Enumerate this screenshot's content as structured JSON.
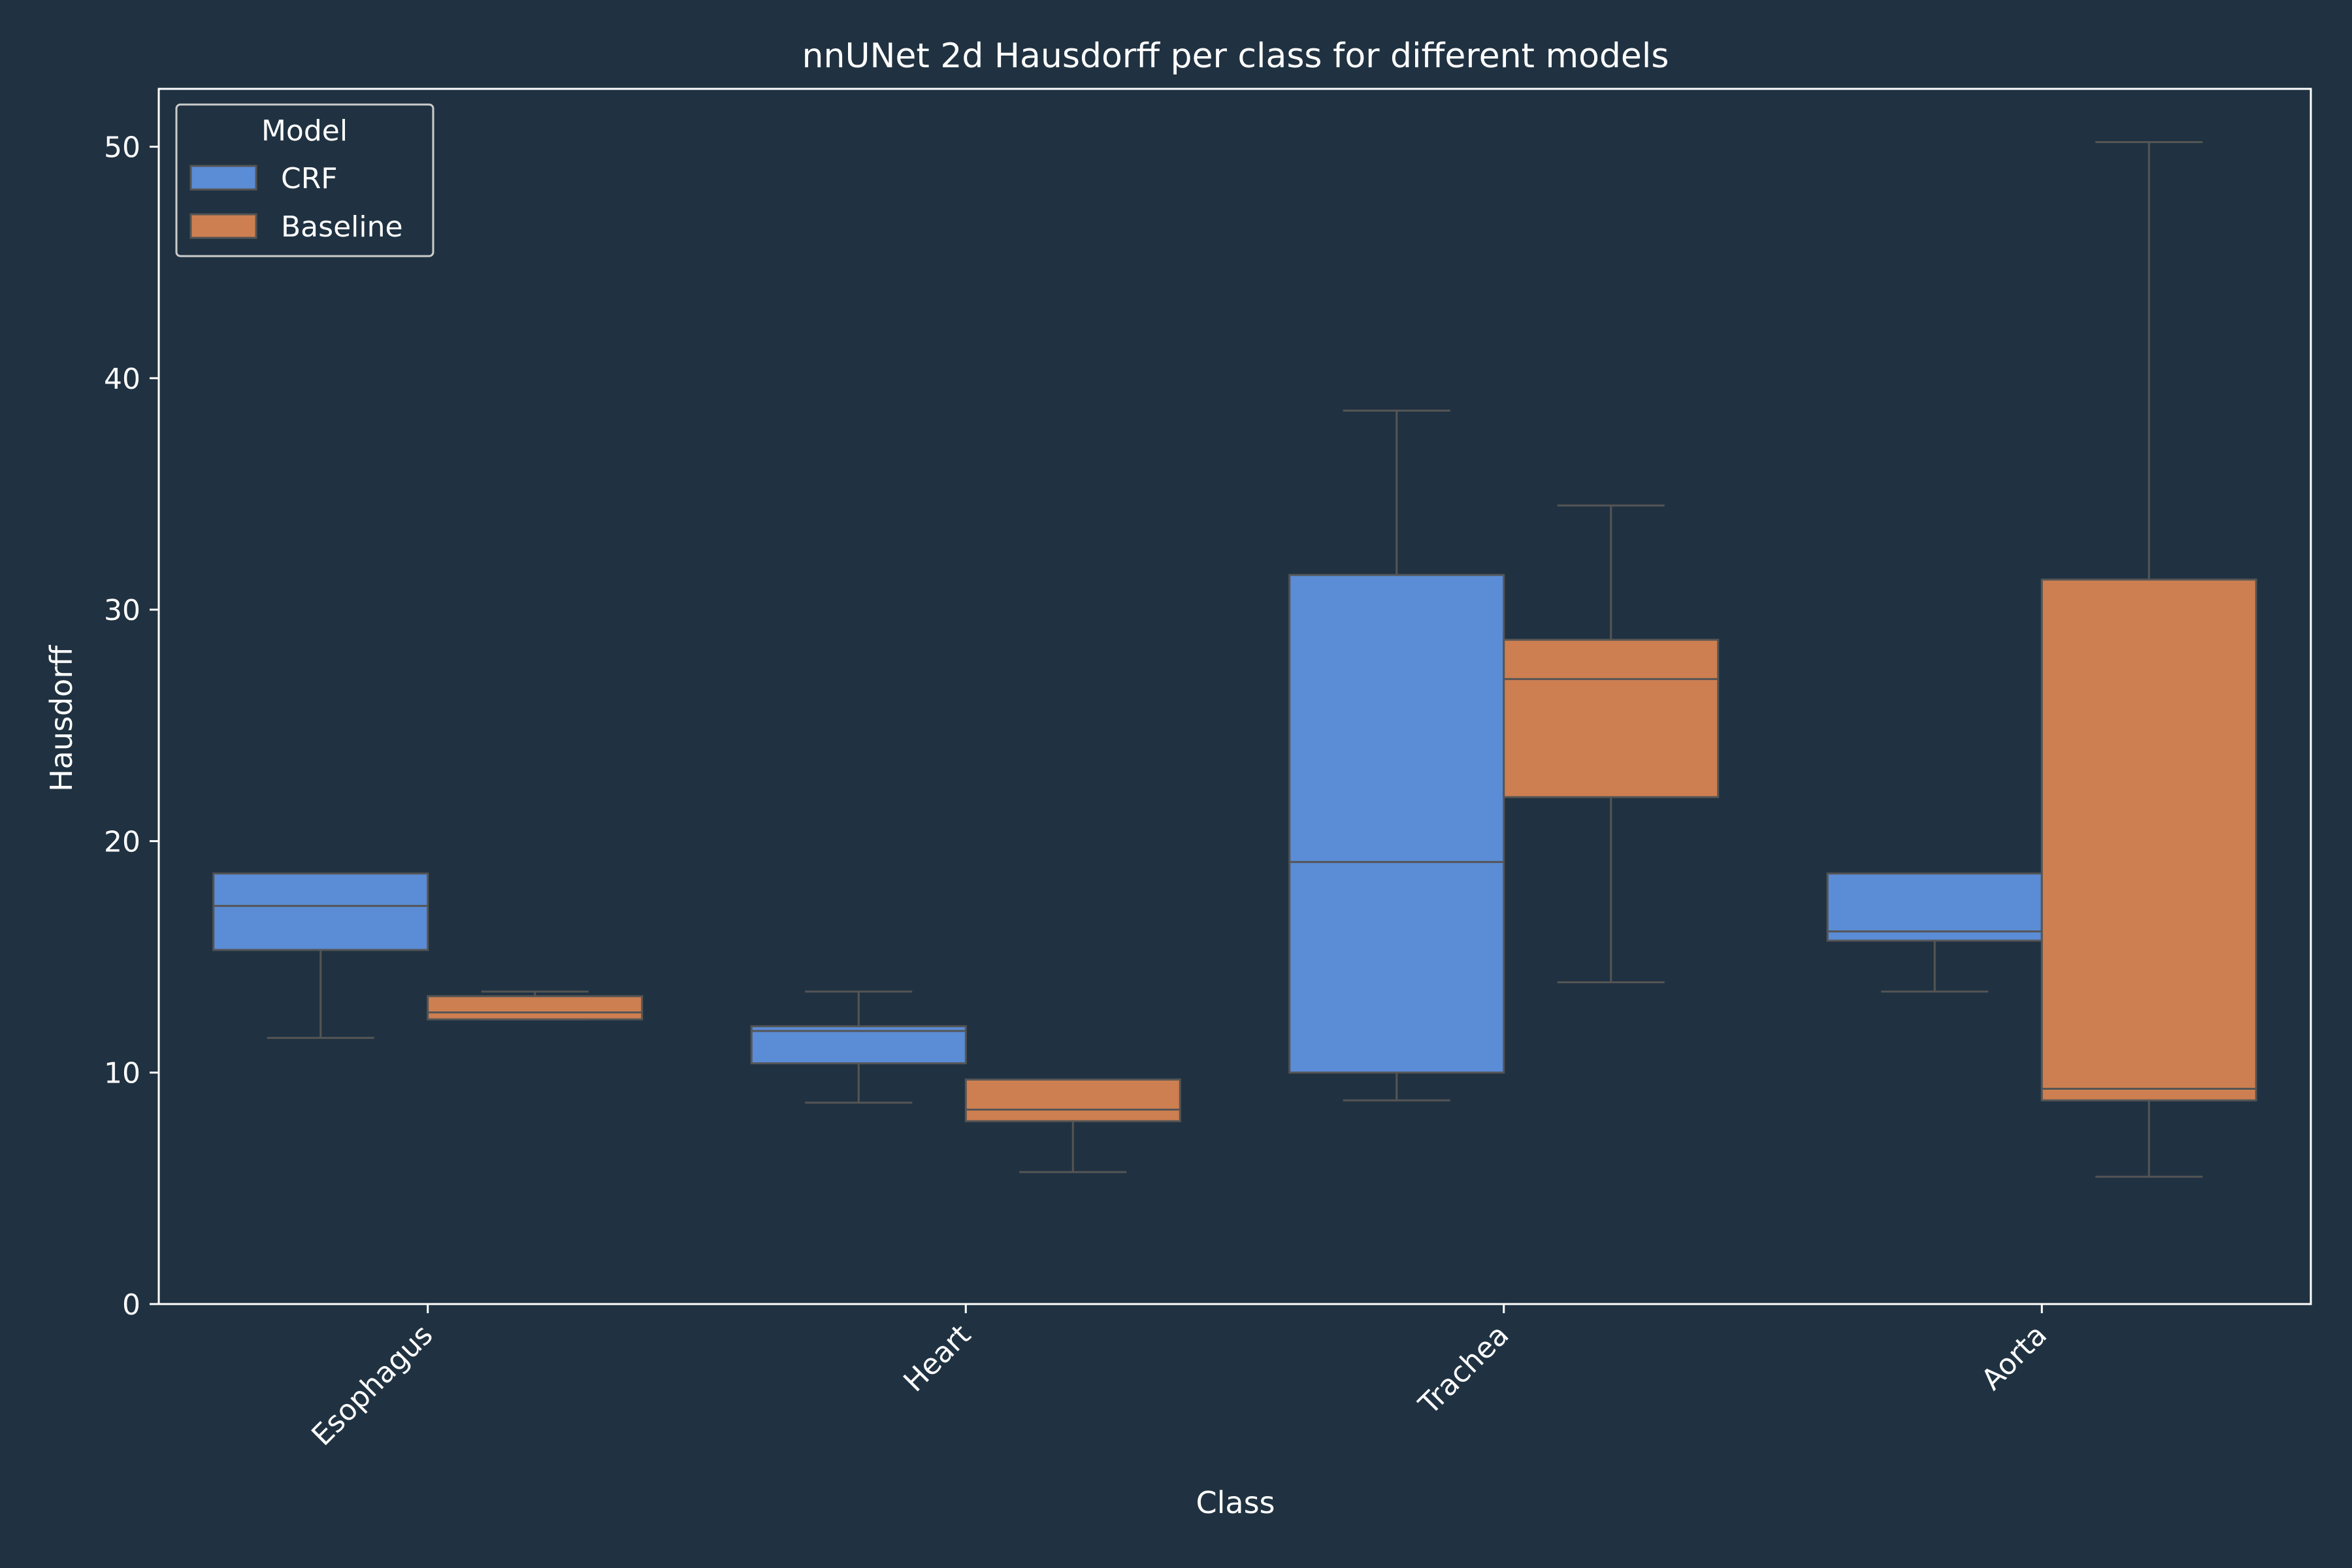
{
  "chart_data": {
    "type": "box",
    "title": "nnUNet 2d Hausdorff per class for different models",
    "xlabel": "Class",
    "ylabel": "Hausdorff",
    "ylim": [
      0,
      52.5
    ],
    "yticks": [
      0,
      10,
      20,
      30,
      40,
      50
    ],
    "categories": [
      "Esophagus",
      "Heart",
      "Trachea",
      "Aorta"
    ],
    "legend": {
      "title": "Model",
      "position": "top-left"
    },
    "grid": false,
    "series": [
      {
        "name": "CRF",
        "color": "#5b8cd6",
        "boxes": [
          {
            "min": 11.5,
            "q1": 15.3,
            "median": 17.2,
            "q3": 18.6,
            "max": 18.6
          },
          {
            "min": 8.7,
            "q1": 10.4,
            "median": 11.8,
            "q3": 12.0,
            "max": 13.5
          },
          {
            "min": 8.8,
            "q1": 10.0,
            "median": 19.1,
            "q3": 31.5,
            "max": 38.6
          },
          {
            "min": 13.5,
            "q1": 15.7,
            "median": 16.1,
            "q3": 18.6,
            "max": 18.6
          }
        ]
      },
      {
        "name": "Baseline",
        "color": "#cd7f51",
        "boxes": [
          {
            "min": 12.3,
            "q1": 12.3,
            "median": 12.6,
            "q3": 13.3,
            "max": 13.5
          },
          {
            "min": 5.7,
            "q1": 7.9,
            "median": 8.4,
            "q3": 9.7,
            "max": 9.7
          },
          {
            "min": 13.9,
            "q1": 21.9,
            "median": 27.0,
            "q3": 28.7,
            "max": 34.5
          },
          {
            "min": 5.5,
            "q1": 8.8,
            "median": 9.3,
            "q3": 31.3,
            "max": 50.2
          }
        ]
      }
    ]
  }
}
